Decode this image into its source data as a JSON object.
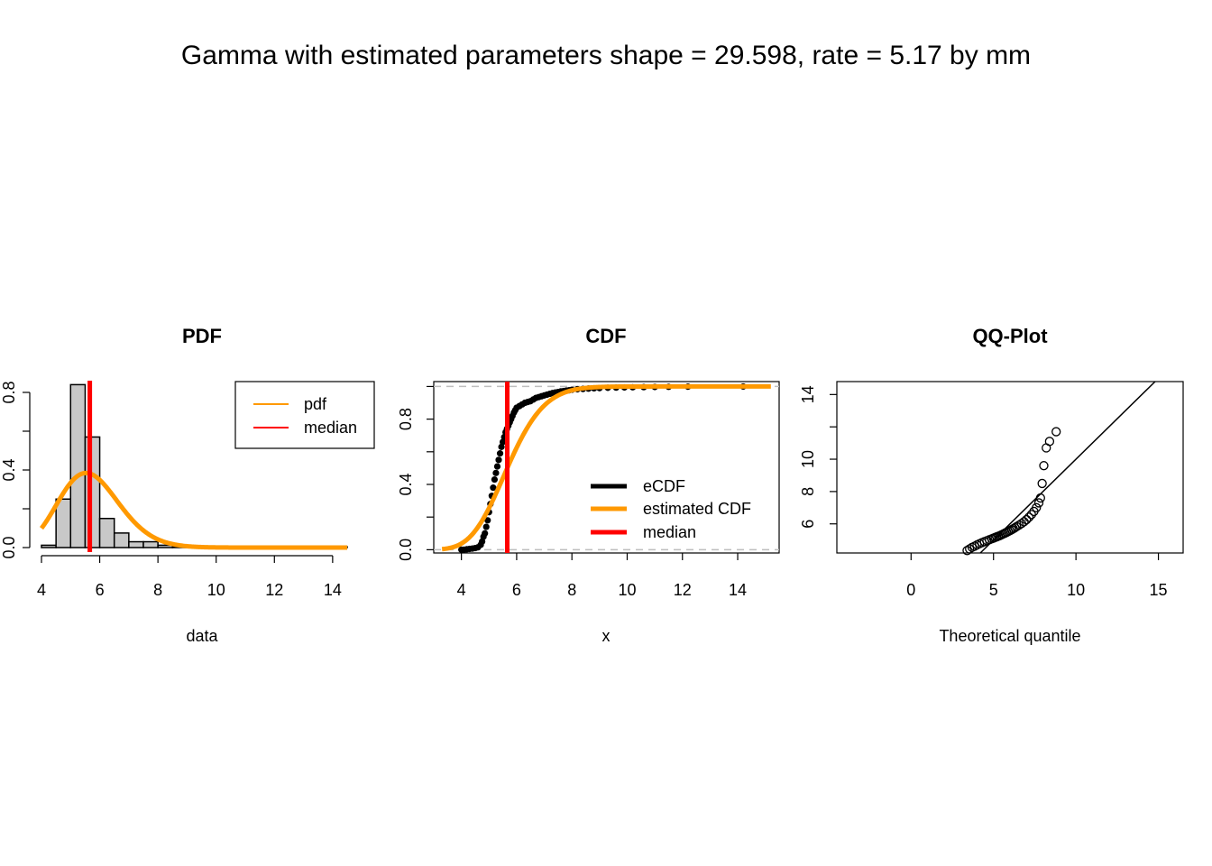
{
  "main_title": "Gamma with estimated parameters shape = 29.598, rate = 5.17 by mm",
  "colors": {
    "pdf": "#FF9900",
    "median": "#FF0000",
    "ecdf": "#000000",
    "hist_fill": "#C8C8C8",
    "ref_dash": "#BEBEBE"
  },
  "chart_data": [
    {
      "type": "bar",
      "panel": "pdf",
      "title": "PDF",
      "xlabel": "data",
      "ylabel": "",
      "xlim": [
        4,
        14.5
      ],
      "ylim": [
        0,
        0.8
      ],
      "xticks": [
        4,
        6,
        8,
        10,
        12,
        14
      ],
      "yticks": [
        0.0,
        0.2,
        0.4,
        0.6,
        0.8
      ],
      "ytick_labels": [
        "0.0",
        "",
        "0.4",
        "",
        "0.8"
      ],
      "bins": [
        {
          "x0": 4.0,
          "x1": 4.5,
          "density": 0.012
        },
        {
          "x0": 4.5,
          "x1": 5.0,
          "density": 0.25
        },
        {
          "x0": 5.0,
          "x1": 5.5,
          "density": 0.84
        },
        {
          "x0": 5.5,
          "x1": 6.0,
          "density": 0.57
        },
        {
          "x0": 6.0,
          "x1": 6.5,
          "density": 0.15
        },
        {
          "x0": 6.5,
          "x1": 7.0,
          "density": 0.075
        },
        {
          "x0": 7.0,
          "x1": 7.5,
          "density": 0.03
        },
        {
          "x0": 7.5,
          "x1": 8.0,
          "density": 0.03
        },
        {
          "x0": 8.0,
          "x1": 8.5,
          "density": 0.012
        },
        {
          "x0": 8.5,
          "x1": 9.0,
          "density": 0.006
        },
        {
          "x0": 10.5,
          "x1": 11.0,
          "density": 0.006
        },
        {
          "x0": 12.0,
          "x1": 12.5,
          "density": 0.004
        },
        {
          "x0": 14.0,
          "x1": 14.5,
          "density": 0.004
        }
      ],
      "shape": 29.598,
      "rate": 5.17,
      "median": 5.66,
      "legend": [
        "pdf",
        "median"
      ],
      "legend_position": "top-right"
    },
    {
      "type": "line",
      "panel": "cdf",
      "title": "CDF",
      "xlabel": "x",
      "ylabel": "",
      "xlim": [
        3.0,
        15.5
      ],
      "ylim": [
        -0.02,
        1.03
      ],
      "xticks": [
        4,
        6,
        8,
        10,
        12,
        14
      ],
      "yticks": [
        0.0,
        0.2,
        0.4,
        0.6,
        0.8,
        1.0
      ],
      "ytick_labels": [
        "0.0",
        "",
        "0.4",
        "",
        "0.8",
        ""
      ],
      "ecdf_x": [
        4.0,
        4.1,
        4.2,
        4.3,
        4.4,
        4.5,
        4.6,
        4.7,
        4.75,
        4.8,
        4.85,
        4.9,
        4.95,
        5.0,
        5.05,
        5.1,
        5.15,
        5.2,
        5.25,
        5.3,
        5.35,
        5.4,
        5.45,
        5.5,
        5.55,
        5.6,
        5.65,
        5.7,
        5.75,
        5.8,
        5.85,
        5.9,
        5.95,
        6.0,
        6.1,
        6.2,
        6.3,
        6.4,
        6.5,
        6.6,
        6.7,
        6.8,
        6.9,
        7.0,
        7.1,
        7.2,
        7.3,
        7.4,
        7.5,
        7.6,
        7.7,
        7.8,
        7.9,
        8.0,
        8.2,
        8.4,
        8.6,
        8.8,
        9.0,
        9.3,
        9.6,
        9.9,
        10.2,
        10.6,
        11.0,
        11.5,
        12.2,
        14.2
      ],
      "ecdf_y": [
        0.0,
        0.0,
        0.003,
        0.005,
        0.007,
        0.01,
        0.015,
        0.03,
        0.05,
        0.08,
        0.1,
        0.14,
        0.18,
        0.23,
        0.28,
        0.33,
        0.38,
        0.43,
        0.47,
        0.51,
        0.55,
        0.59,
        0.63,
        0.66,
        0.69,
        0.72,
        0.74,
        0.76,
        0.78,
        0.8,
        0.82,
        0.84,
        0.855,
        0.87,
        0.88,
        0.89,
        0.9,
        0.905,
        0.91,
        0.92,
        0.93,
        0.935,
        0.94,
        0.945,
        0.95,
        0.955,
        0.96,
        0.963,
        0.966,
        0.97,
        0.972,
        0.975,
        0.977,
        0.98,
        0.983,
        0.985,
        0.987,
        0.989,
        0.99,
        0.992,
        0.993,
        0.994,
        0.995,
        0.996,
        0.997,
        0.998,
        0.999,
        1.0
      ],
      "shape": 29.598,
      "rate": 5.17,
      "median": 5.66,
      "legend": [
        "eCDF",
        "estimated CDF",
        "median"
      ],
      "legend_position": "bottom-right"
    },
    {
      "type": "scatter",
      "panel": "qq",
      "title": "QQ-Plot",
      "xlabel": "Theoretical quantile",
      "ylabel": "",
      "xlim": [
        -4.5,
        16.5
      ],
      "ylim": [
        4.2,
        14.8
      ],
      "xticks": [
        0,
        5,
        10,
        15
      ],
      "yticks": [
        6,
        8,
        10,
        12,
        14
      ],
      "ytick_labels": [
        "6",
        "8",
        "10",
        "",
        "14"
      ],
      "points_x": [
        3.4,
        3.55,
        3.7,
        3.85,
        4.0,
        4.15,
        4.3,
        4.45,
        4.6,
        4.75,
        4.9,
        5.0,
        5.1,
        5.2,
        5.3,
        5.4,
        5.5,
        5.6,
        5.7,
        5.8,
        5.9,
        6.0,
        6.1,
        6.2,
        6.3,
        6.4,
        6.55,
        6.7,
        6.85,
        7.0,
        7.15,
        7.3,
        7.45,
        7.6,
        7.75,
        7.85,
        7.95,
        8.05,
        8.2,
        8.4,
        8.8
      ],
      "points_y": [
        4.35,
        4.45,
        4.55,
        4.62,
        4.7,
        4.77,
        4.84,
        4.9,
        4.96,
        5.02,
        5.08,
        5.12,
        5.16,
        5.2,
        5.24,
        5.28,
        5.33,
        5.38,
        5.43,
        5.48,
        5.53,
        5.58,
        5.64,
        5.7,
        5.76,
        5.83,
        5.92,
        6.02,
        6.13,
        6.26,
        6.41,
        6.58,
        6.77,
        7.0,
        7.3,
        7.6,
        8.5,
        9.6,
        10.7,
        11.1,
        11.7
      ],
      "ref_line": {
        "intercept": 0.0,
        "slope": 1.0
      }
    }
  ]
}
